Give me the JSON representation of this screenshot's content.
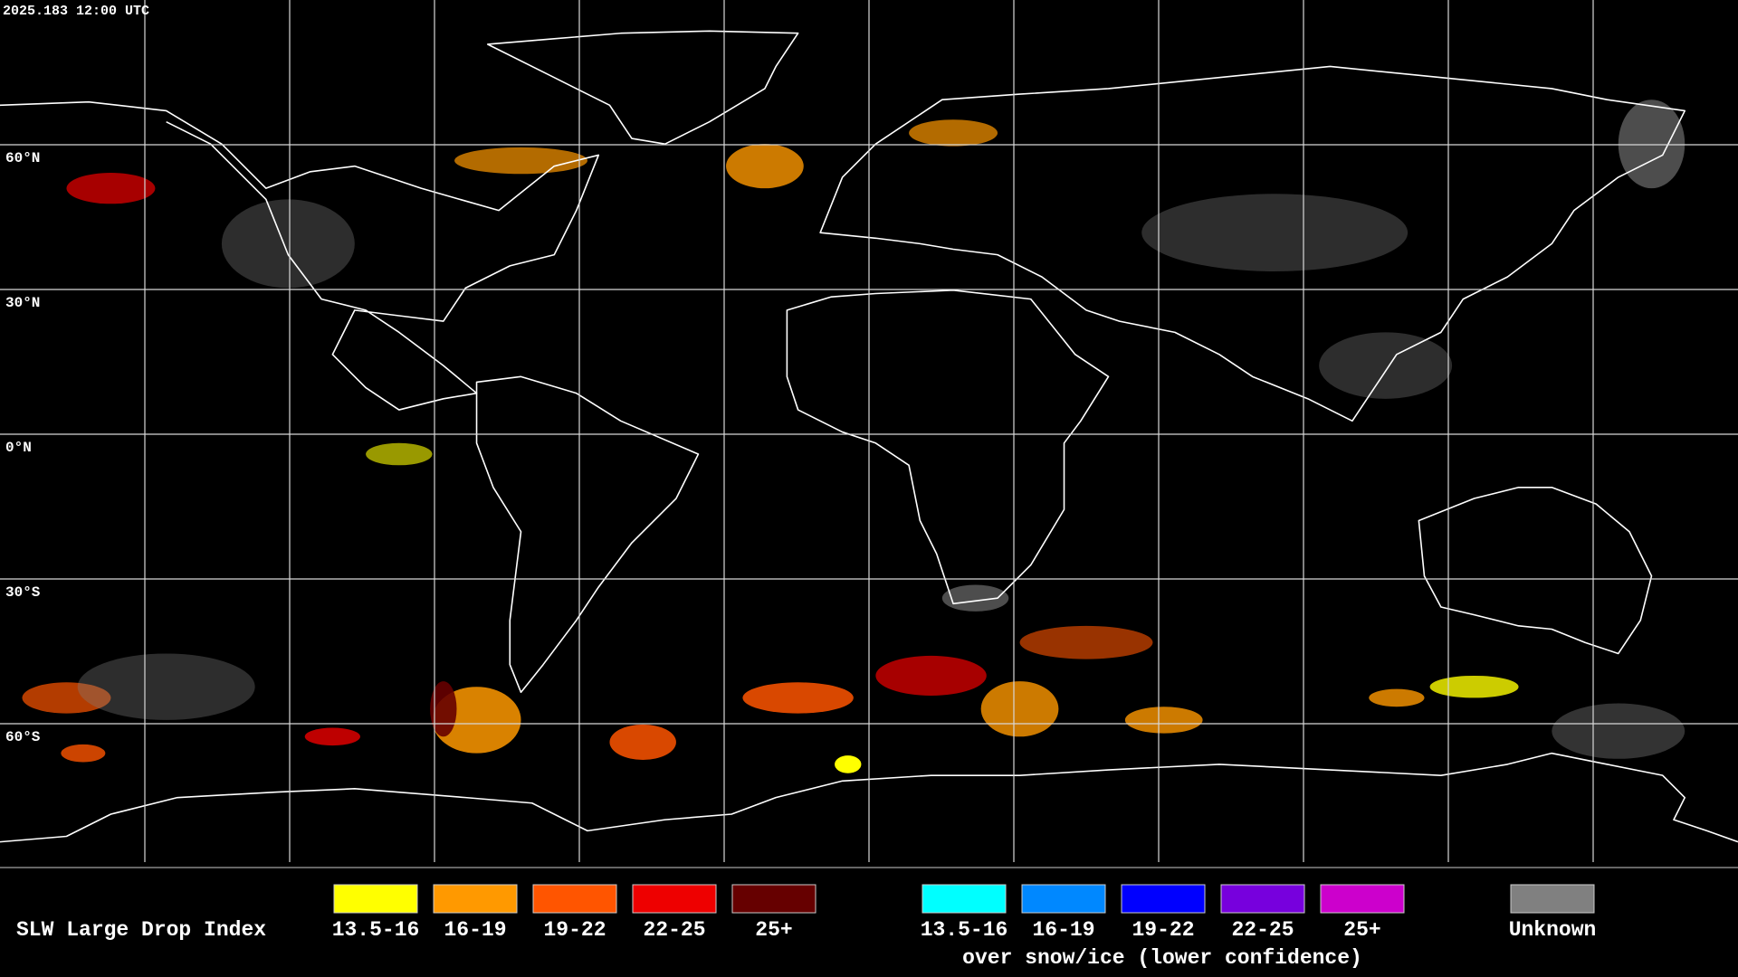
{
  "timestamp": "2025.183 12:00 UTC",
  "latitude_labels": [
    "60°N",
    "30°N",
    "0°N",
    "30°S",
    "60°S"
  ],
  "legend": {
    "title": "SLW Large Drop Index",
    "items": [
      {
        "label": "13.5-16",
        "color": "#ffff00"
      },
      {
        "label": "16-19",
        "color": "#ff9900"
      },
      {
        "label": "19-22",
        "color": "#ff5500"
      },
      {
        "label": "22-25",
        "color": "#ee0000"
      },
      {
        "label": "25+",
        "color": "#660000"
      }
    ],
    "snow_items": [
      {
        "label": "13.5-16",
        "color": "#00ffff"
      },
      {
        "label": "16-19",
        "color": "#0088ff"
      },
      {
        "label": "19-22",
        "color": "#0000ff"
      },
      {
        "label": "22-25",
        "color": "#7700dd"
      },
      {
        "label": "25+",
        "color": "#cc00cc"
      }
    ],
    "snow_caption": "over snow/ice (lower confidence)",
    "unknown": {
      "label": "Unknown",
      "color": "#808080"
    }
  }
}
